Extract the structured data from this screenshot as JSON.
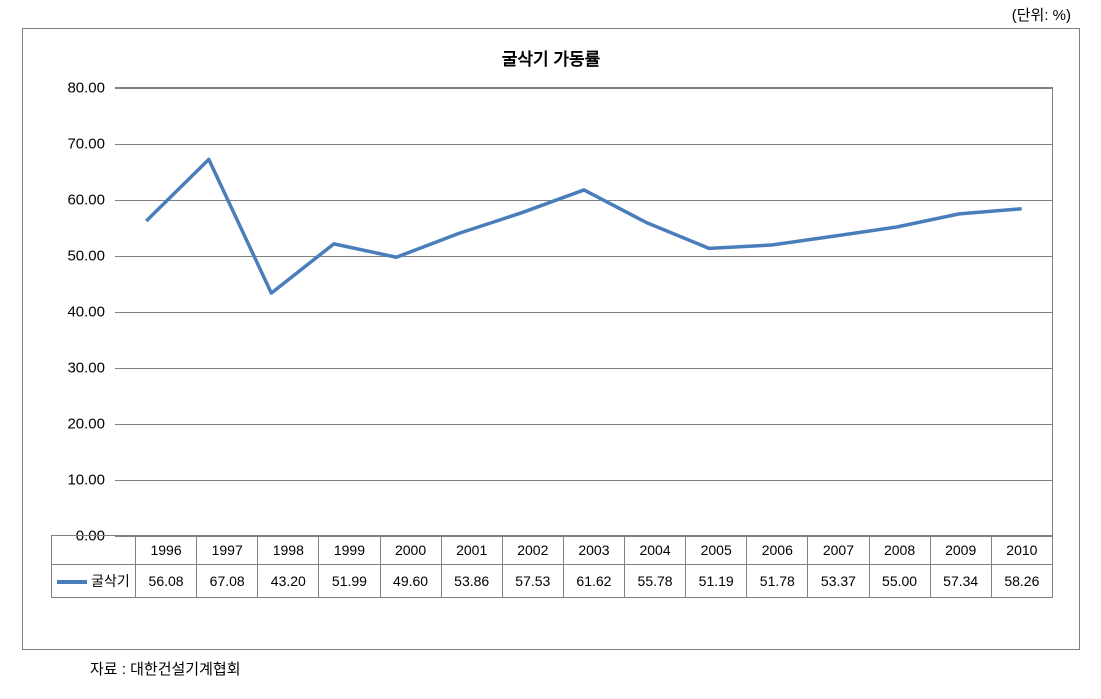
{
  "unit_label": "(단위: %)",
  "source_label": "자료 : 대한건설기계협회",
  "chart": {
    "type": "line",
    "title": "굴삭기 가동률",
    "title_fontsize": 17,
    "series_name": "굴삭기",
    "categories": [
      "1996",
      "1997",
      "1998",
      "1999",
      "2000",
      "2001",
      "2002",
      "2003",
      "2004",
      "2005",
      "2006",
      "2007",
      "2008",
      "2009",
      "2010"
    ],
    "values": [
      56.08,
      67.08,
      43.2,
      51.99,
      49.6,
      53.86,
      57.53,
      61.62,
      55.78,
      51.19,
      51.78,
      53.37,
      55.0,
      57.34,
      58.26
    ],
    "values_display": [
      "56.08",
      "67.08",
      "43.20",
      "51.99",
      "49.60",
      "53.86",
      "57.53",
      "61.62",
      "55.78",
      "51.19",
      "51.78",
      "53.37",
      "55.00",
      "57.34",
      "58.26"
    ],
    "ylim": [
      0,
      80
    ],
    "ytick_step": 10,
    "ytick_labels": [
      "0.00",
      "10.00",
      "20.00",
      "30.00",
      "40.00",
      "50.00",
      "60.00",
      "70.00",
      "80.00"
    ],
    "line_color": "#4a7ebb",
    "line_width": 3.5,
    "grid_color": "#808080",
    "background_color": "#ffffff",
    "label_fontsize": 15,
    "table_fontsize": 14
  }
}
